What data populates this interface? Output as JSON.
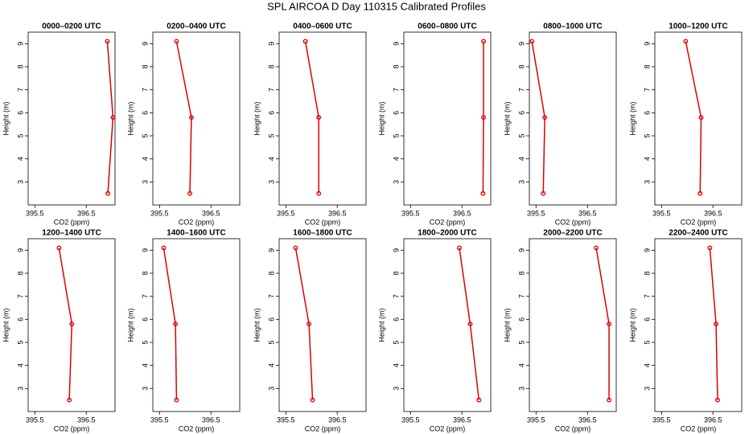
{
  "title": "SPL AIRCOA D  Day 110315  Calibrated Profiles",
  "chart_data": [
    {
      "type": "line",
      "title": "0000–0200 UTC",
      "x_label": "CO2 (ppm)",
      "y_label": "Height (m)",
      "color": "#dd0000",
      "x": [
        396.92,
        397.02,
        396.91
      ],
      "values": [
        2.5,
        5.8,
        9.1
      ],
      "xlim": [
        395.37,
        397.06
      ],
      "xticks": [
        395.5,
        396.5
      ],
      "ylim": [
        2.0,
        9.5
      ],
      "yticks": [
        3,
        4,
        5,
        6,
        7,
        8,
        9
      ]
    },
    {
      "type": "line",
      "title": "0200–0400 UTC",
      "x_label": "CO2 (ppm)",
      "y_label": "Height (m)",
      "color": "#dd0000",
      "x": [
        396.09,
        396.12,
        395.83
      ],
      "values": [
        2.5,
        5.8,
        9.1
      ],
      "xlim": [
        395.37,
        397.06
      ],
      "xticks": [
        395.5,
        396.5
      ],
      "ylim": [
        2.0,
        9.5
      ],
      "yticks": [
        3,
        4,
        5,
        6,
        7,
        8,
        9
      ]
    },
    {
      "type": "line",
      "title": "0400–0600 UTC",
      "x_label": "CO2 (ppm)",
      "y_label": "Height (m)",
      "color": "#dd0000",
      "x": [
        396.14,
        396.14,
        395.88
      ],
      "values": [
        2.5,
        5.8,
        9.1
      ],
      "xlim": [
        395.37,
        397.06
      ],
      "xticks": [
        395.5,
        396.5
      ],
      "ylim": [
        2.0,
        9.5
      ],
      "yticks": [
        3,
        4,
        5,
        6,
        7,
        8,
        9
      ]
    },
    {
      "type": "line",
      "title": "0600–0800 UTC",
      "x_label": "CO2 (ppm)",
      "y_label": "Height (m)",
      "color": "#dd0000",
      "x": [
        396.91,
        396.92,
        396.92
      ],
      "values": [
        2.5,
        5.8,
        9.1
      ],
      "xlim": [
        395.37,
        397.06
      ],
      "xticks": [
        395.5,
        396.5
      ],
      "ylim": [
        2.0,
        9.5
      ],
      "yticks": [
        3,
        4,
        5,
        6,
        7,
        8,
        9
      ]
    },
    {
      "type": "line",
      "title": "0800–1000 UTC",
      "x_label": "CO2 (ppm)",
      "y_label": "Height (m)",
      "color": "#dd0000",
      "x": [
        395.64,
        395.67,
        395.42
      ],
      "values": [
        2.5,
        5.8,
        9.1
      ],
      "xlim": [
        395.37,
        397.06
      ],
      "xticks": [
        395.5,
        396.5
      ],
      "ylim": [
        2.0,
        9.5
      ],
      "yticks": [
        3,
        4,
        5,
        6,
        7,
        8,
        9
      ]
    },
    {
      "type": "line",
      "title": "1000–1200 UTC",
      "x_label": "CO2 (ppm)",
      "y_label": "Height (m)",
      "color": "#dd0000",
      "x": [
        396.25,
        396.27,
        395.97
      ],
      "values": [
        2.5,
        5.8,
        9.1
      ],
      "xlim": [
        395.37,
        397.06
      ],
      "xticks": [
        395.5,
        396.5
      ],
      "ylim": [
        2.0,
        9.5
      ],
      "yticks": [
        3,
        4,
        5,
        6,
        7,
        8,
        9
      ]
    },
    {
      "type": "line",
      "title": "1200–1400 UTC",
      "x_label": "CO2 (ppm)",
      "y_label": "Height (m)",
      "color": "#dd0000",
      "x": [
        396.17,
        396.22,
        395.97
      ],
      "values": [
        2.5,
        5.8,
        9.1
      ],
      "xlim": [
        395.37,
        397.06
      ],
      "xticks": [
        395.5,
        396.5
      ],
      "ylim": [
        2.0,
        9.5
      ],
      "yticks": [
        3,
        4,
        5,
        6,
        7,
        8,
        9
      ]
    },
    {
      "type": "line",
      "title": "1400–1600 UTC",
      "x_label": "CO2 (ppm)",
      "y_label": "Height (m)",
      "color": "#dd0000",
      "x": [
        395.83,
        395.81,
        395.58
      ],
      "values": [
        2.5,
        5.8,
        9.1
      ],
      "xlim": [
        395.37,
        397.06
      ],
      "xticks": [
        395.5,
        396.5
      ],
      "ylim": [
        2.0,
        9.5
      ],
      "yticks": [
        3,
        4,
        5,
        6,
        7,
        8,
        9
      ]
    },
    {
      "type": "line",
      "title": "1600–1800 UTC",
      "x_label": "CO2 (ppm)",
      "y_label": "Height (m)",
      "color": "#dd0000",
      "x": [
        396.02,
        395.95,
        395.69
      ],
      "values": [
        2.5,
        5.8,
        9.1
      ],
      "xlim": [
        395.37,
        397.06
      ],
      "xticks": [
        395.5,
        396.5
      ],
      "ylim": [
        2.0,
        9.5
      ],
      "yticks": [
        3,
        4,
        5,
        6,
        7,
        8,
        9
      ]
    },
    {
      "type": "line",
      "title": "1800–2000 UTC",
      "x_label": "CO2 (ppm)",
      "y_label": "Height (m)",
      "color": "#dd0000",
      "x": [
        396.83,
        396.66,
        396.45
      ],
      "values": [
        2.5,
        5.8,
        9.1
      ],
      "xlim": [
        395.37,
        397.06
      ],
      "xticks": [
        395.5,
        396.5
      ],
      "ylim": [
        2.0,
        9.5
      ],
      "yticks": [
        3,
        4,
        5,
        6,
        7,
        8,
        9
      ]
    },
    {
      "type": "line",
      "title": "2000–2200 UTC",
      "x_label": "CO2 (ppm)",
      "y_label": "Height (m)",
      "color": "#dd0000",
      "x": [
        396.92,
        396.92,
        396.67
      ],
      "values": [
        2.5,
        5.8,
        9.1
      ],
      "xlim": [
        395.37,
        397.06
      ],
      "xticks": [
        395.5,
        396.5
      ],
      "ylim": [
        2.0,
        9.5
      ],
      "yticks": [
        3,
        4,
        5,
        6,
        7,
        8,
        9
      ]
    },
    {
      "type": "line",
      "title": "2200–2400 UTC",
      "x_label": "CO2 (ppm)",
      "y_label": "Height (m)",
      "color": "#dd0000",
      "x": [
        396.59,
        396.56,
        396.44
      ],
      "values": [
        2.5,
        5.8,
        9.1
      ],
      "xlim": [
        395.37,
        397.06
      ],
      "xticks": [
        395.5,
        396.5
      ],
      "ylim": [
        2.0,
        9.5
      ],
      "yticks": [
        3,
        4,
        5,
        6,
        7,
        8,
        9
      ]
    }
  ]
}
